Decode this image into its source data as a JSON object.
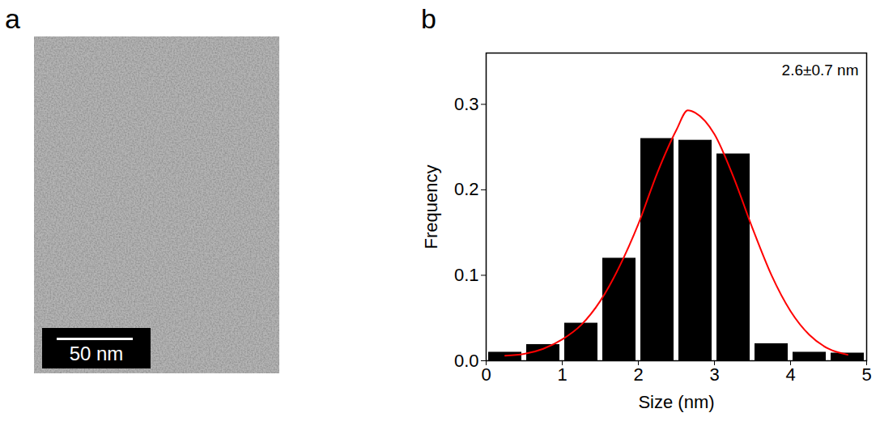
{
  "chart_data": [
    {
      "type": "image",
      "panel_label": "a",
      "scale_bar": "50 nm"
    },
    {
      "type": "histogram",
      "panel_label": "b",
      "x_label": "Size (nm)",
      "y_label": "Frequency",
      "annotation": "2.6±0.7 nm",
      "bins": [
        0,
        0.5,
        1,
        1.5,
        2,
        2.5,
        3,
        3.5,
        4,
        4.5,
        5
      ],
      "values": [
        0.01,
        0.019,
        0.044,
        0.12,
        0.26,
        0.258,
        0.242,
        0.02,
        0.01,
        0.009
      ],
      "color": "#000000",
      "fit": {
        "type": "line",
        "color": "#ff0000",
        "x": [
          0.25,
          0.5,
          0.75,
          1.0,
          1.25,
          1.5,
          1.75,
          2.0,
          2.25,
          2.5,
          2.65,
          2.75,
          3.0,
          3.25,
          3.5,
          3.75,
          4.0,
          4.25,
          4.5,
          4.75
        ],
        "values": [
          0.006,
          0.008,
          0.014,
          0.025,
          0.042,
          0.07,
          0.11,
          0.16,
          0.22,
          0.27,
          0.293,
          0.29,
          0.265,
          0.215,
          0.155,
          0.1,
          0.058,
          0.03,
          0.014,
          0.007
        ]
      },
      "xlim": [
        0,
        5
      ],
      "xticks": [
        0,
        1,
        2,
        3,
        4,
        5
      ],
      "ylim": [
        0,
        0.36
      ],
      "yticks": [
        {
          "value": 0,
          "label": "0.0"
        },
        0.1,
        0.2,
        0.3
      ],
      "grid": false
    }
  ]
}
